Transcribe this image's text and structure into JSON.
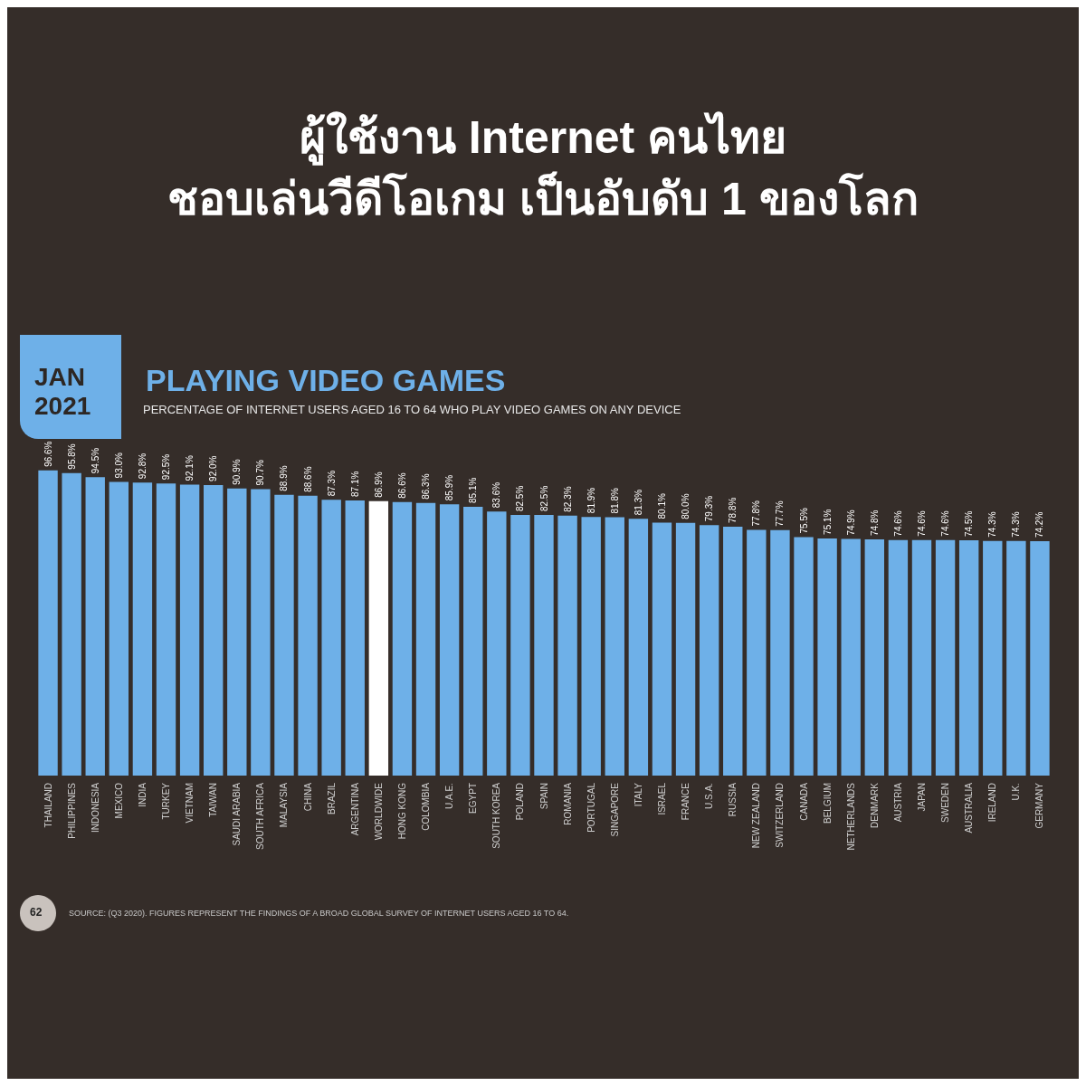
{
  "chart_data": {
    "type": "bar",
    "title": "ผู้ใช้งาน Internet คนไทย\nชอบเล่นวีดีโอเกม เป็นอับดับ 1 ของโลก",
    "subtitle": "PLAYING VIDEO GAMES",
    "annotations": [
      "JAN\n2021",
      "PERCENTAGE OF INTERNET USERS AGED 16 TO 64 WHO PLAY VIDEO GAMES ON ANY DEVICE",
      "62",
      "SOURCE: (Q3 2020). FIGURES REPRESENT THE FINDINGS OF A BROAD GLOBAL SURVEY OF INTERNET USERS AGED 16 TO 64."
    ],
    "categories": [
      "THAILAND",
      "PHILIPPINES",
      "INDONESIA",
      "MEXICO",
      "INDIA",
      "TURKEY",
      "VIETNAM",
      "TAIWAN",
      "SAUDI ARABIA",
      "SOUTH AFRICA",
      "MALAYSIA",
      "CHINA",
      "BRAZIL",
      "ARGENTINA",
      "WORLDWIDE",
      "HONG KONG",
      "COLOMBIA",
      "U.A.E.",
      "EGYPT",
      "SOUTH KOREA",
      "POLAND",
      "SPAIN",
      "ROMANIA",
      "PORTUGAL",
      "SINGAPORE",
      "ITALY",
      "ISRAEL",
      "FRANCE",
      "U.S.A.",
      "RUSSIA",
      "NEW ZEALAND",
      "SWITZERLAND",
      "CANADA",
      "BELGIUM",
      "NETHERLANDS",
      "DENMARK",
      "AUSTRIA",
      "JAPAN",
      "SWEDEN",
      "AUSTRALIA",
      "IRELAND",
      "U.K.",
      "GERMANY"
    ],
    "values": [
      96.6,
      95.8,
      94.5,
      93.0,
      92.8,
      92.5,
      92.1,
      92.0,
      90.9,
      90.7,
      88.9,
      88.6,
      87.3,
      87.1,
      86.9,
      86.6,
      86.3,
      85.9,
      85.1,
      83.6,
      82.5,
      82.5,
      82.3,
      81.9,
      81.8,
      81.3,
      80.1,
      80.0,
      79.3,
      78.8,
      77.8,
      77.7,
      75.5,
      75.1,
      74.9,
      74.8,
      74.6,
      74.6,
      74.6,
      74.5,
      74.3,
      74.3,
      74.2
    ],
    "value_labels": [
      "96.6%",
      "95.8%",
      "94.5%",
      "93.0%",
      "92.8%",
      "92.5%",
      "92.1%",
      "92.0%",
      "90.9%",
      "90.7%",
      "88.9%",
      "88.6%",
      "87.3%",
      "87.1%",
      "86.9%",
      "86.6%",
      "86.3%",
      "85.9%",
      "85.1%",
      "83.6%",
      "82.5%",
      "82.5%",
      "82.3%",
      "81.9%",
      "81.8%",
      "81.3%",
      "80.1%",
      "80.0%",
      "79.3%",
      "78.8%",
      "77.8%",
      "77.7%",
      "75.5%",
      "75.1%",
      "74.9%",
      "74.8%",
      "74.6%",
      "74.6%",
      "74.6%",
      "74.5%",
      "74.3%",
      "74.3%",
      "74.2%"
    ],
    "colors": [
      "#6eb0e8",
      "#6eb0e8",
      "#6eb0e8",
      "#6eb0e8",
      "#6eb0e8",
      "#6eb0e8",
      "#6eb0e8",
      "#6eb0e8",
      "#6eb0e8",
      "#6eb0e8",
      "#6eb0e8",
      "#6eb0e8",
      "#6eb0e8",
      "#6eb0e8",
      "#ffffff",
      "#6eb0e8",
      "#6eb0e8",
      "#6eb0e8",
      "#6eb0e8",
      "#6eb0e8",
      "#6eb0e8",
      "#6eb0e8",
      "#6eb0e8",
      "#6eb0e8",
      "#6eb0e8",
      "#6eb0e8",
      "#6eb0e8",
      "#6eb0e8",
      "#6eb0e8",
      "#6eb0e8",
      "#6eb0e8",
      "#6eb0e8",
      "#6eb0e8",
      "#6eb0e8",
      "#6eb0e8",
      "#6eb0e8",
      "#6eb0e8",
      "#6eb0e8",
      "#6eb0e8",
      "#6eb0e8",
      "#6eb0e8",
      "#6eb0e8",
      "#6eb0e8"
    ]
  }
}
